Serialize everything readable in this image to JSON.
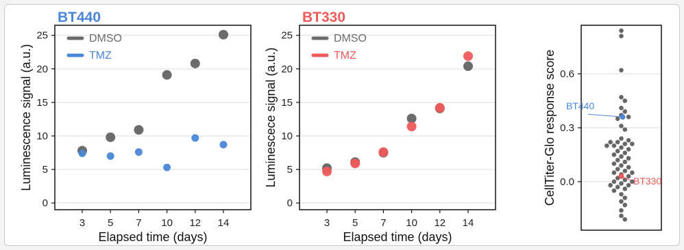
{
  "colors": {
    "dmso": "#6b6b6b",
    "bt440": "#4a86d6",
    "bt330": "#f05a5a",
    "swarm": "#666666",
    "grid": "#dddddd",
    "axis": "#111111"
  },
  "chart_data": [
    {
      "type": "scatter",
      "title": "BT440",
      "xlabel": "Elapsed time (days)",
      "ylabel": "Luminescence signal (a.u.)",
      "x": [
        3,
        5,
        7,
        10,
        12,
        14
      ],
      "ylim": [
        -1,
        26.5
      ],
      "yticks": [
        0,
        5,
        10,
        15,
        20,
        25
      ],
      "grid": true,
      "legend_position": "top-left",
      "series": [
        {
          "name": "DMSO",
          "values": [
            7.8,
            9.8,
            10.9,
            19.1,
            20.8,
            25.1
          ]
        },
        {
          "name": "TMZ",
          "values": [
            7.4,
            7.0,
            7.6,
            5.3,
            9.7,
            8.7
          ]
        }
      ]
    },
    {
      "type": "scatter",
      "title": "BT330",
      "xlabel": "Elapsed time (days)",
      "ylabel": "Luminescece signal (a.u.)",
      "x": [
        3,
        5,
        7,
        10,
        12,
        14
      ],
      "ylim": [
        -1,
        26.5
      ],
      "yticks": [
        0,
        5,
        10,
        15,
        20,
        25
      ],
      "grid": true,
      "legend_position": "top-left",
      "series": [
        {
          "name": "DMSO",
          "values": [
            5.2,
            6.1,
            7.5,
            12.6,
            14.1,
            20.4
          ]
        },
        {
          "name": "TMZ",
          "values": [
            4.7,
            5.9,
            7.6,
            11.4,
            14.2,
            21.9
          ]
        }
      ]
    },
    {
      "type": "scatter",
      "subtype": "swarm",
      "ylabel": "CellTiter-Glo response score",
      "ylim": [
        -0.27,
        0.87
      ],
      "yticks": [
        0.0,
        0.3,
        0.6
      ],
      "ytick_labels": [
        "0.0",
        "0.3",
        "0.6"
      ],
      "grid": true,
      "values": [
        0.84,
        0.81,
        0.62,
        0.47,
        0.45,
        0.41,
        0.39,
        0.37,
        0.36,
        0.35,
        0.31,
        0.29,
        0.24,
        0.23,
        0.22,
        0.22,
        0.21,
        0.21,
        0.2,
        0.2,
        0.19,
        0.18,
        0.17,
        0.16,
        0.15,
        0.14,
        0.13,
        0.12,
        0.11,
        0.1,
        0.09,
        0.08,
        0.07,
        0.06,
        0.05,
        0.05,
        0.04,
        0.03,
        0.02,
        0.01,
        0.0,
        0.0,
        -0.01,
        -0.02,
        -0.02,
        -0.03,
        -0.04,
        -0.05,
        -0.07,
        -0.09,
        -0.11,
        -0.13,
        -0.16,
        -0.19,
        -0.21
      ],
      "highlights": [
        {
          "label": "BT440",
          "value": 0.36
        },
        {
          "label": "BT330",
          "value": 0.03
        }
      ]
    }
  ]
}
